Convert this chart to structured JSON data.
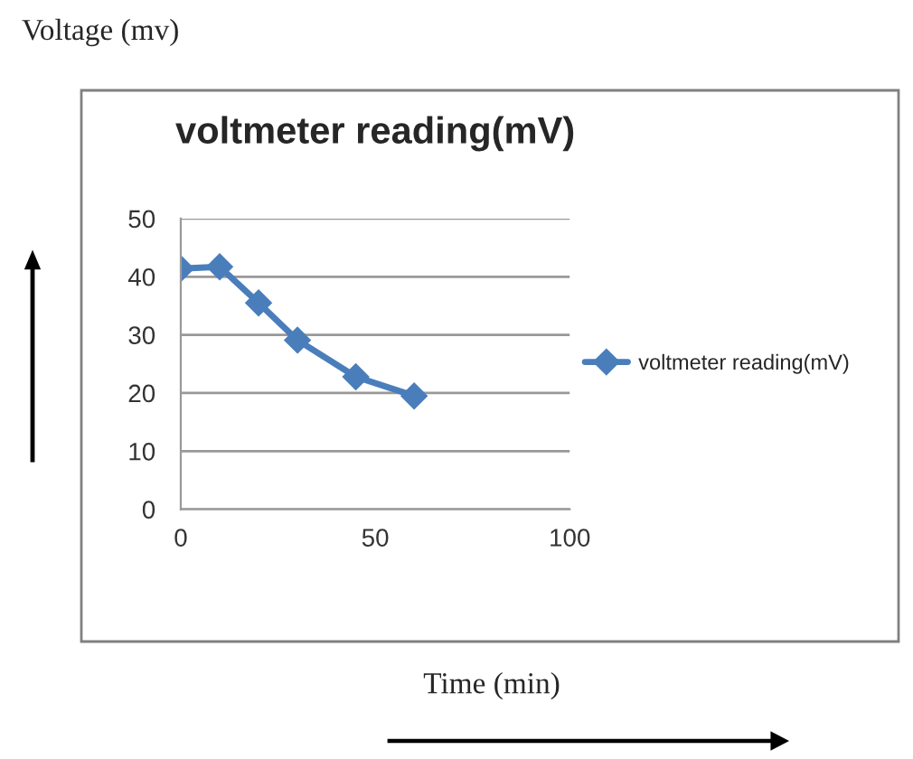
{
  "chart_data": {
    "type": "line",
    "title": "voltmeter reading(mV)",
    "xlabel": "Time (min)",
    "annotations": [
      "Voltage (mv)"
    ],
    "x": [
      0,
      10,
      20,
      30,
      45,
      60
    ],
    "series": [
      {
        "name": "voltmeter reading(mV)",
        "color": "#4a7ebb",
        "values": [
          41.4,
          41.7,
          35.5,
          29.1,
          22.8,
          19.5
        ]
      }
    ],
    "xlim": [
      0,
      100
    ],
    "xticks": [
      0,
      50,
      100
    ],
    "ylim": [
      0,
      50
    ],
    "yticks": [
      0,
      10,
      20,
      30,
      40,
      50
    ],
    "grid": "y",
    "legend": "right",
    "marker": "diamond",
    "line_style": "solid"
  }
}
